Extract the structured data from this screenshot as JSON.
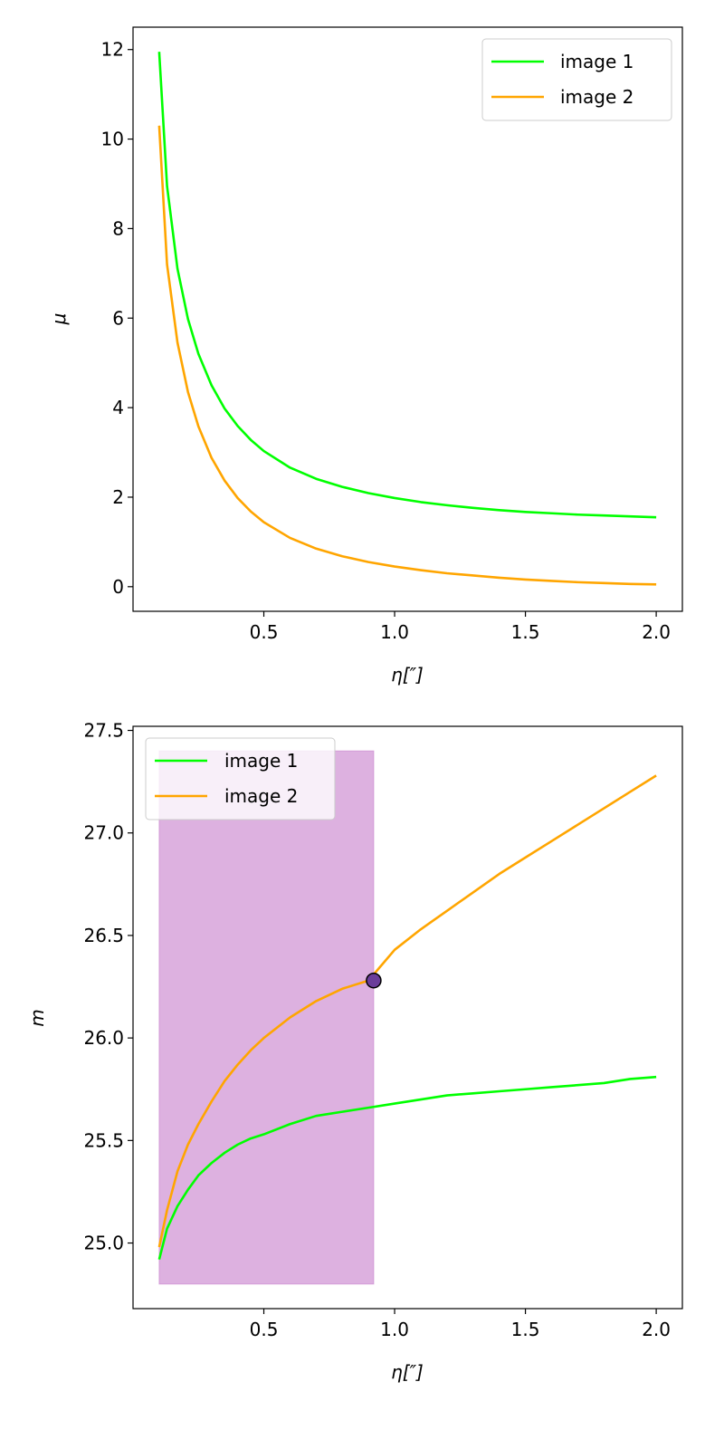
{
  "chart_data": [
    {
      "type": "line",
      "xlabel": "η[″]",
      "ylabel": "μ",
      "xlim": [
        0.0,
        2.1
      ],
      "ylim": [
        -0.55,
        12.5
      ],
      "xticks": [
        0.5,
        1.0,
        1.5,
        2.0
      ],
      "xtick_labels": [
        "0.5",
        "1.0",
        "1.5",
        "2.0"
      ],
      "yticks": [
        0,
        2,
        4,
        6,
        8,
        10,
        12
      ],
      "ytick_labels": [
        "0",
        "2",
        "4",
        "6",
        "8",
        "10",
        "12"
      ],
      "grid": false,
      "legend": "upper right",
      "series": [
        {
          "name": "image 1",
          "color": "#00ff00",
          "x": [
            0.1,
            0.13,
            0.17,
            0.21,
            0.25,
            0.3,
            0.35,
            0.4,
            0.45,
            0.5,
            0.6,
            0.7,
            0.8,
            0.9,
            1.0,
            1.1,
            1.2,
            1.3,
            1.4,
            1.5,
            1.6,
            1.7,
            1.8,
            1.9,
            2.0
          ],
          "y": [
            11.95,
            8.95,
            7.1,
            5.98,
            5.2,
            4.5,
            3.98,
            3.59,
            3.28,
            3.03,
            2.66,
            2.41,
            2.23,
            2.09,
            1.98,
            1.89,
            1.82,
            1.76,
            1.71,
            1.67,
            1.64,
            1.61,
            1.59,
            1.57,
            1.55
          ]
        },
        {
          "name": "image 2",
          "color": "#ffa500",
          "x": [
            0.1,
            0.13,
            0.17,
            0.21,
            0.25,
            0.3,
            0.35,
            0.4,
            0.45,
            0.5,
            0.6,
            0.7,
            0.8,
            0.9,
            1.0,
            1.1,
            1.2,
            1.3,
            1.4,
            1.5,
            1.6,
            1.7,
            1.8,
            1.9,
            2.0
          ],
          "y": [
            10.3,
            7.2,
            5.45,
            4.35,
            3.58,
            2.88,
            2.37,
            1.98,
            1.68,
            1.44,
            1.09,
            0.85,
            0.68,
            0.55,
            0.45,
            0.37,
            0.3,
            0.25,
            0.2,
            0.16,
            0.13,
            0.1,
            0.08,
            0.06,
            0.05
          ]
        }
      ]
    },
    {
      "type": "line",
      "xlabel": "η[″]",
      "ylabel": "m",
      "xlim": [
        0.0,
        2.1
      ],
      "ylim": [
        24.68,
        27.52
      ],
      "xticks": [
        0.5,
        1.0,
        1.5,
        2.0
      ],
      "xtick_labels": [
        "0.5",
        "1.0",
        "1.5",
        "2.0"
      ],
      "yticks": [
        25.0,
        25.5,
        26.0,
        26.5,
        27.0,
        27.5
      ],
      "ytick_labels": [
        "25.0",
        "25.5",
        "26.0",
        "26.5",
        "27.0",
        "27.5"
      ],
      "grid": false,
      "legend": "upper left",
      "shaded_region": {
        "x": [
          0.1,
          0.92
        ],
        "y": [
          24.8,
          27.4
        ],
        "color": "#c77dcc"
      },
      "marker": {
        "x": 0.92,
        "y": 26.28,
        "color": "#6a3d9a"
      },
      "series": [
        {
          "name": "image 1",
          "color": "#00ff00",
          "x": [
            0.1,
            0.13,
            0.17,
            0.21,
            0.25,
            0.3,
            0.35,
            0.4,
            0.45,
            0.5,
            0.6,
            0.7,
            0.8,
            0.9,
            1.0,
            1.1,
            1.2,
            1.3,
            1.4,
            1.5,
            1.6,
            1.7,
            1.8,
            1.9,
            2.0
          ],
          "y": [
            24.92,
            25.07,
            25.18,
            25.26,
            25.33,
            25.39,
            25.44,
            25.48,
            25.51,
            25.53,
            25.58,
            25.62,
            25.64,
            25.66,
            25.68,
            25.7,
            25.72,
            25.73,
            25.74,
            25.75,
            25.76,
            25.77,
            25.78,
            25.8,
            25.81
          ]
        },
        {
          "name": "image 2",
          "color": "#ffa500",
          "x": [
            0.1,
            0.13,
            0.17,
            0.21,
            0.25,
            0.3,
            0.35,
            0.4,
            0.45,
            0.5,
            0.6,
            0.7,
            0.8,
            0.9,
            1.0,
            1.1,
            1.2,
            1.3,
            1.4,
            1.5,
            1.6,
            1.7,
            1.8,
            1.9,
            2.0
          ],
          "y": [
            24.98,
            25.16,
            25.35,
            25.48,
            25.58,
            25.69,
            25.79,
            25.87,
            25.94,
            26.0,
            26.1,
            26.18,
            26.24,
            26.28,
            26.43,
            26.53,
            26.62,
            26.71,
            26.8,
            26.88,
            26.96,
            27.04,
            27.12,
            27.2,
            27.28
          ]
        }
      ]
    }
  ]
}
